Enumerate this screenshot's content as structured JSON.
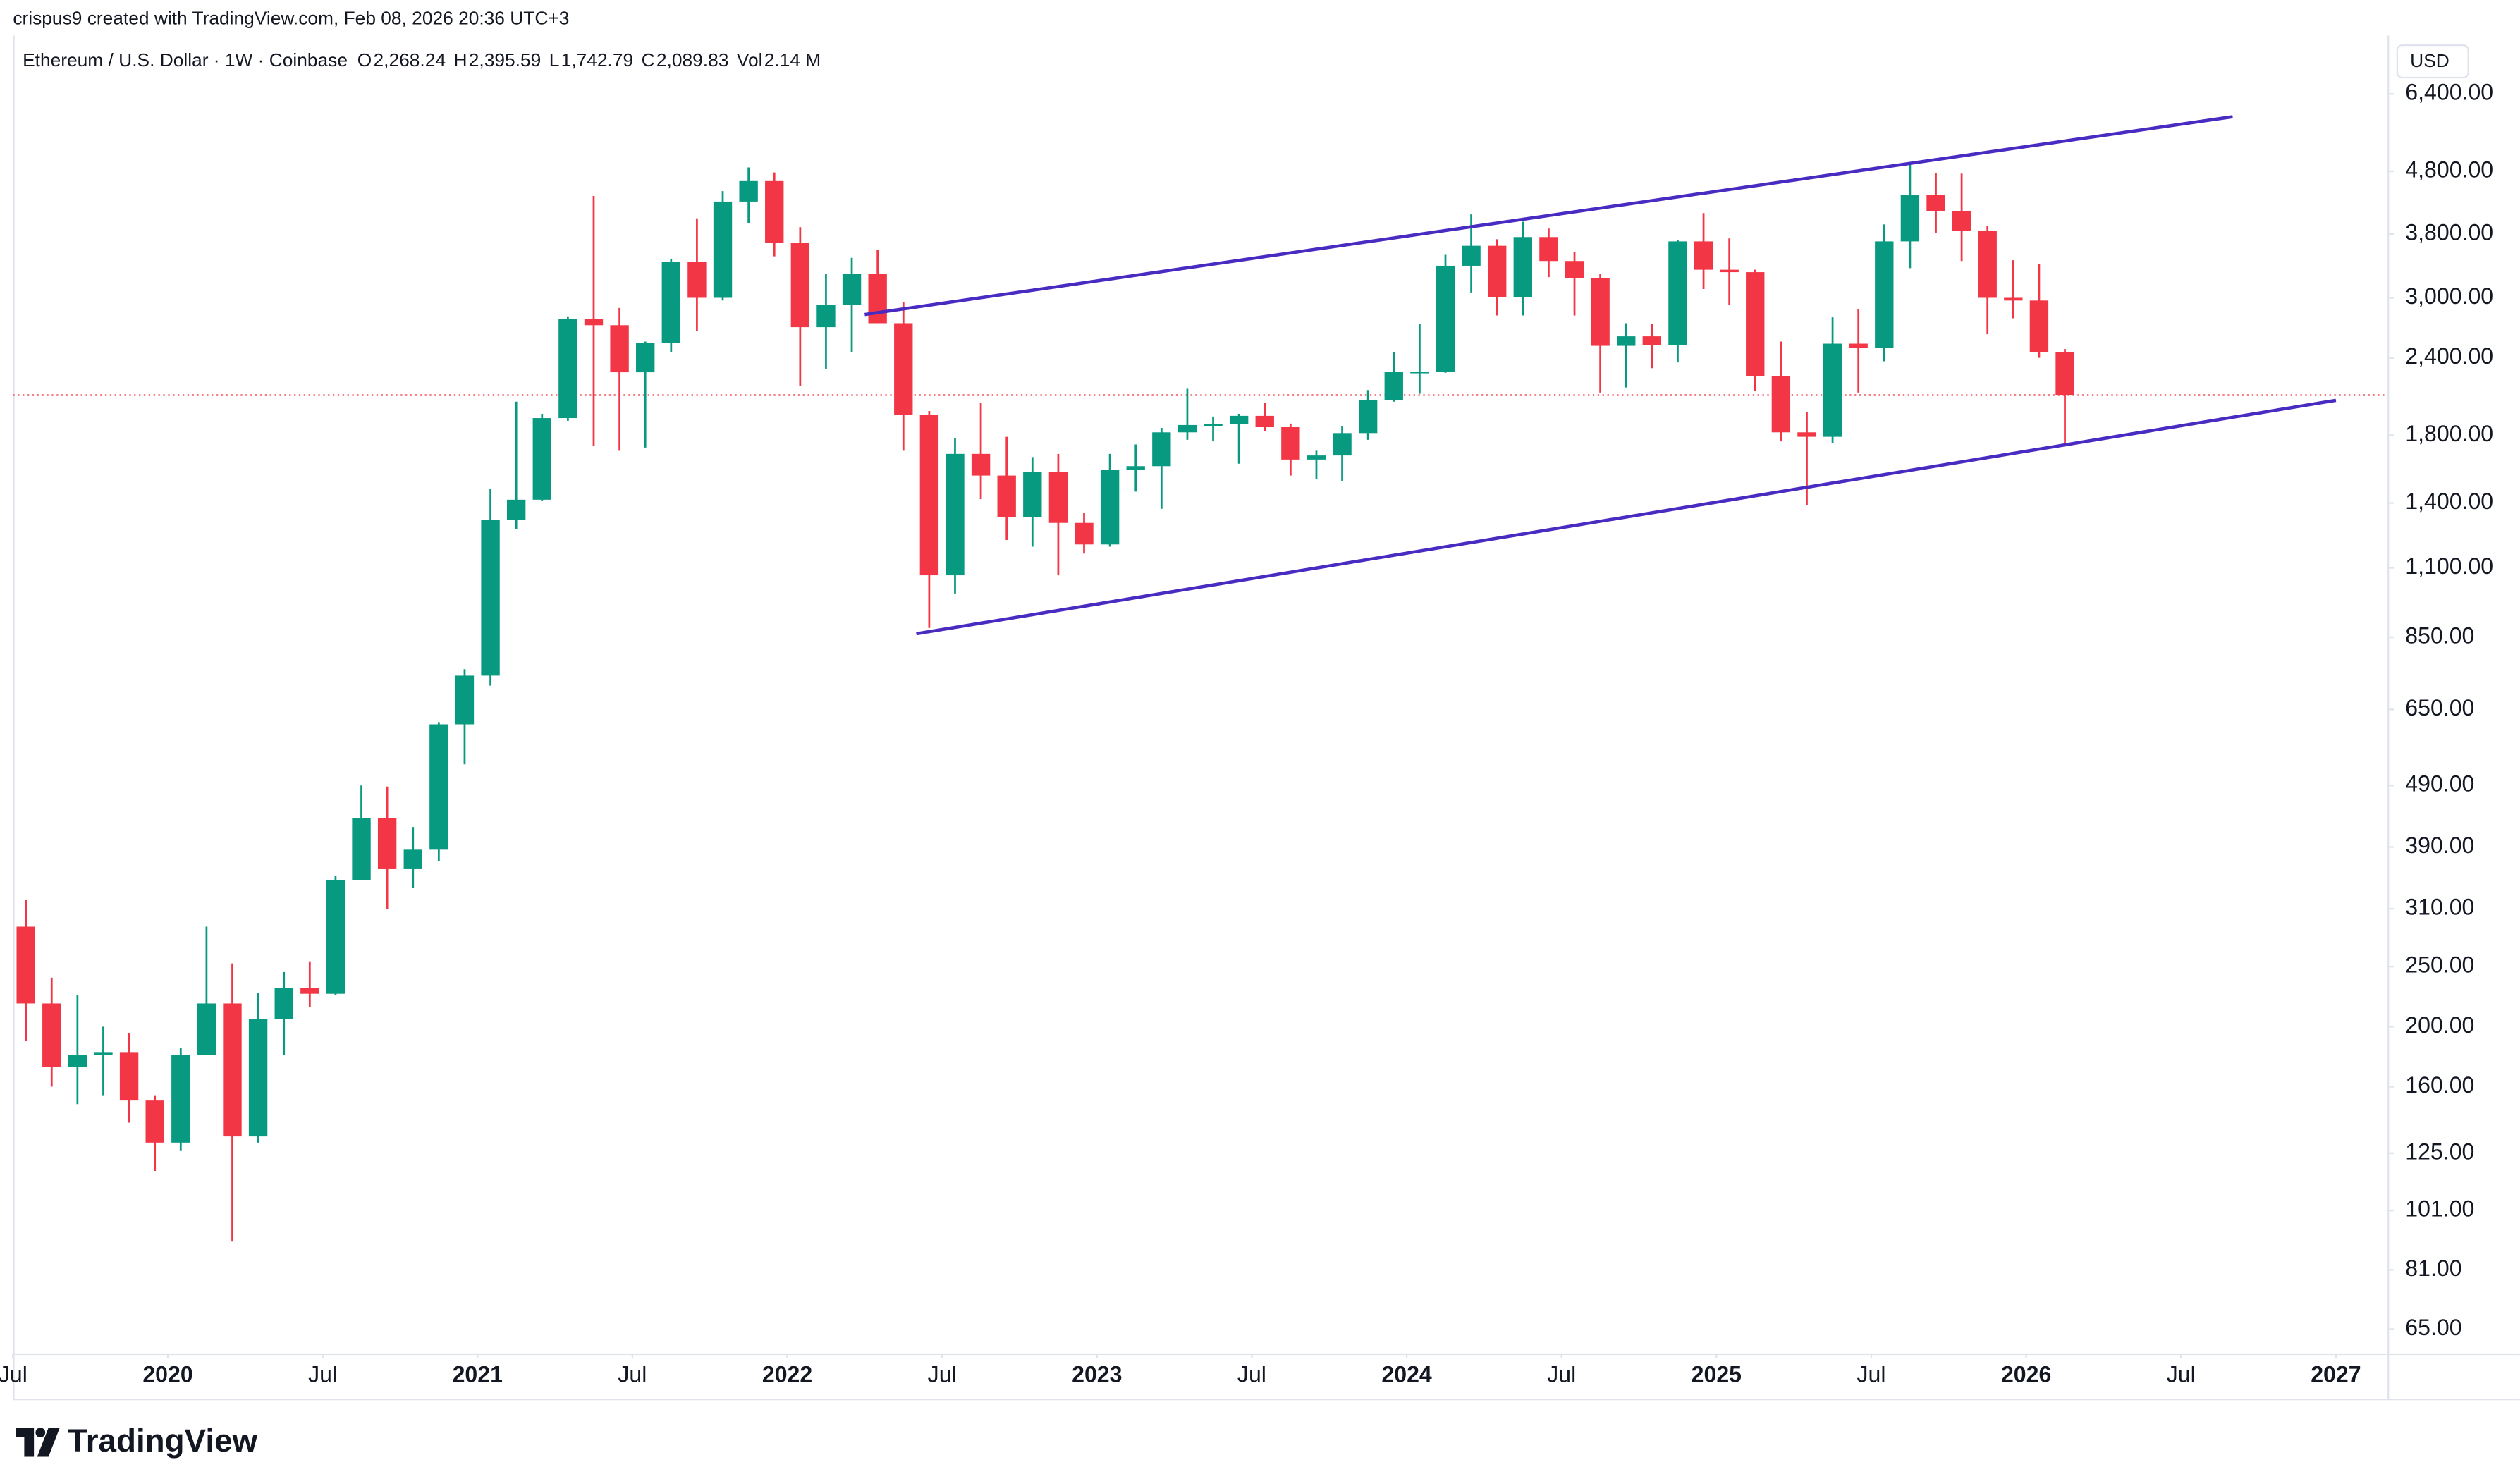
{
  "header": {
    "credit": "crispus9 created with TradingView.com, Feb 08, 2026 20:36 UTC+3",
    "symbol": "Ethereum / U.S. Dollar · 1W · Coinbase",
    "fields": [
      {
        "key": "O",
        "value": "2,268.24"
      },
      {
        "key": "H",
        "value": "2,395.59"
      },
      {
        "key": "L",
        "value": "1,742.79"
      },
      {
        "key": "C",
        "value": "2,089.83"
      },
      {
        "key": "Vol",
        "value": "2.14 M"
      }
    ],
    "currency": "USD"
  },
  "footer": {
    "brand": "TradingView"
  },
  "chart_data": {
    "type": "candlestick",
    "log_scale": true,
    "grid": false,
    "up_color": "#089981",
    "down_color": "#f23645",
    "x": [
      "2019-07",
      "2019-08",
      "2019-09",
      "2019-10",
      "2019-11",
      "2019-12",
      "2020-01",
      "2020-02",
      "2020-03",
      "2020-04",
      "2020-05",
      "2020-06",
      "2020-07",
      "2020-08",
      "2020-09",
      "2020-10",
      "2020-11",
      "2020-12",
      "2021-01",
      "2021-02",
      "2021-03",
      "2021-04",
      "2021-05",
      "2021-06",
      "2021-07",
      "2021-08",
      "2021-09",
      "2021-10",
      "2021-11",
      "2021-12",
      "2022-01",
      "2022-02",
      "2022-03",
      "2022-04",
      "2022-05",
      "2022-06",
      "2022-07",
      "2022-08",
      "2022-09",
      "2022-10",
      "2022-11",
      "2022-12",
      "2023-01",
      "2023-02",
      "2023-03",
      "2023-04",
      "2023-05",
      "2023-06",
      "2023-07",
      "2023-08",
      "2023-09",
      "2023-10",
      "2023-11",
      "2023-12",
      "2024-01",
      "2024-02",
      "2024-03",
      "2024-04",
      "2024-05",
      "2024-06",
      "2024-07",
      "2024-08",
      "2024-09",
      "2024-10",
      "2024-11",
      "2024-12",
      "2025-01",
      "2025-02",
      "2025-03",
      "2025-04",
      "2025-05",
      "2025-06",
      "2025-07",
      "2025-08",
      "2025-09",
      "2025-10",
      "2025-11",
      "2025-12",
      "2026-01",
      "2026-02"
    ],
    "open": [
      290,
      218,
      172,
      180,
      182,
      152,
      130,
      180,
      218,
      133,
      206,
      231,
      226,
      345,
      434,
      360,
      386,
      615,
      737,
      1314,
      1417,
      1919,
      2773,
      2710,
      2275,
      2536,
      3430,
      3000,
      4290,
      4630,
      3680,
      2690,
      2920,
      3280,
      2730,
      1940,
      1070,
      1680,
      1550,
      1330,
      1570,
      1300,
      1200,
      1585,
      1605,
      1820,
      1870,
      1875,
      1935,
      1855,
      1645,
      1670,
      1815,
      2050,
      2280,
      2280,
      3380,
      3640,
      3010,
      3760,
      3440,
      3230,
      2510,
      2600,
      2520,
      3700,
      3330,
      3300,
      2240,
      1820,
      1790,
      2530,
      2490,
      3700,
      4400,
      4140,
      3850,
      3000,
      2970,
      2450
    ],
    "high": [
      320,
      240,
      225,
      200,
      195,
      155,
      185,
      290,
      253,
      227,
      245,
      255,
      350,
      490,
      488,
      420,
      620,
      755,
      1475,
      2040,
      1950,
      2800,
      4380,
      2890,
      2550,
      3470,
      4030,
      4460,
      4870,
      4780,
      3900,
      3280,
      3480,
      3580,
      2950,
      1970,
      1780,
      2030,
      1790,
      1660,
      1680,
      1350,
      1680,
      1740,
      1850,
      2140,
      1930,
      1950,
      2030,
      1880,
      1700,
      1865,
      2130,
      2450,
      2720,
      3520,
      4090,
      3730,
      3980,
      3880,
      3560,
      3280,
      2730,
      2720,
      3720,
      4110,
      3740,
      3330,
      2550,
      1960,
      2790,
      2880,
      3940,
      4950,
      4770,
      4760,
      3920,
      3450,
      3400,
      2480
    ],
    "low": [
      190,
      160,
      150,
      155,
      140,
      117,
      126,
      180,
      90,
      130,
      180,
      215,
      225,
      345,
      310,
      335,
      370,
      530,
      710,
      1270,
      1410,
      1900,
      1730,
      1700,
      1720,
      2450,
      2650,
      2970,
      3960,
      3500,
      2160,
      2300,
      2450,
      2790,
      1700,
      880,
      1000,
      1420,
      1220,
      1190,
      1070,
      1160,
      1190,
      1460,
      1370,
      1770,
      1760,
      1620,
      1830,
      1550,
      1530,
      1520,
      1770,
      2040,
      2100,
      2270,
      3060,
      2810,
      2810,
      3240,
      2810,
      2110,
      2150,
      2310,
      2360,
      3100,
      2920,
      2120,
      1760,
      1390,
      1750,
      2110,
      2370,
      3350,
      3820,
      3440,
      2620,
      2780,
      2400,
      1742.79
    ],
    "close": [
      218,
      172,
      180,
      182,
      152,
      130,
      180,
      218,
      133,
      206,
      231,
      226,
      345,
      434,
      360,
      386,
      615,
      737,
      1314,
      1417,
      1919,
      2773,
      2710,
      2275,
      2536,
      3430,
      3000,
      4290,
      4630,
      3680,
      2690,
      2920,
      3280,
      2730,
      1940,
      1070,
      1680,
      1550,
      1330,
      1570,
      1300,
      1200,
      1585,
      1605,
      1820,
      1870,
      1875,
      1935,
      1855,
      1645,
      1670,
      1815,
      2050,
      2280,
      2280,
      3380,
      3640,
      3010,
      3760,
      3440,
      3230,
      2510,
      2600,
      2520,
      3700,
      3330,
      3300,
      2240,
      1820,
      1790,
      2530,
      2490,
      3700,
      4400,
      4140,
      3850,
      3000,
      2970,
      2450,
      2089.83
    ],
    "price_line_color": "#f23645",
    "trendline_color": "#4a2bc2",
    "trendlines": [
      {
        "x": [
          "2022-04",
          "2026-09"
        ],
        "y": [
          2820,
          5880
        ]
      },
      {
        "x": [
          "2022-06",
          "2027-01"
        ],
        "y": [
          861,
          2050
        ]
      }
    ],
    "xlim": [
      "2019-07",
      "2027-03"
    ],
    "xticks": [
      {
        "value": "2019-07",
        "label": "Jul"
      },
      {
        "value": "2020-01",
        "label": "2020"
      },
      {
        "value": "2020-07",
        "label": "Jul"
      },
      {
        "value": "2021-01",
        "label": "2021"
      },
      {
        "value": "2021-07",
        "label": "Jul"
      },
      {
        "value": "2022-01",
        "label": "2022"
      },
      {
        "value": "2022-07",
        "label": "Jul"
      },
      {
        "value": "2023-01",
        "label": "2023"
      },
      {
        "value": "2023-07",
        "label": "Jul"
      },
      {
        "value": "2024-01",
        "label": "2024"
      },
      {
        "value": "2024-07",
        "label": "Jul"
      },
      {
        "value": "2025-01",
        "label": "2025"
      },
      {
        "value": "2025-07",
        "label": "Jul"
      },
      {
        "value": "2026-01",
        "label": "2026"
      },
      {
        "value": "2026-07",
        "label": "Jul"
      },
      {
        "value": "2027-01",
        "label": "2027"
      }
    ],
    "ylim": [
      59.4,
      7950
    ],
    "yticks": [
      {
        "value": 6400,
        "label": "6,400.00"
      },
      {
        "value": 4800,
        "label": "4,800.00"
      },
      {
        "value": 3800,
        "label": "3,800.00"
      },
      {
        "value": 3000,
        "label": "3,000.00"
      },
      {
        "value": 2400,
        "label": "2,400.00"
      },
      {
        "value": 1800,
        "label": "1,800.00"
      },
      {
        "value": 1400,
        "label": "1,400.00"
      },
      {
        "value": 1100,
        "label": "1,100.00"
      },
      {
        "value": 850,
        "label": "850.00"
      },
      {
        "value": 650,
        "label": "650.00"
      },
      {
        "value": 490,
        "label": "490.00"
      },
      {
        "value": 390,
        "label": "390.00"
      },
      {
        "value": 310,
        "label": "310.00"
      },
      {
        "value": 250,
        "label": "250.00"
      },
      {
        "value": 200,
        "label": "200.00"
      },
      {
        "value": 160,
        "label": "160.00"
      },
      {
        "value": 125,
        "label": "125.00"
      },
      {
        "value": 101,
        "label": "101.00"
      },
      {
        "value": 81,
        "label": "81.00"
      },
      {
        "value": 65,
        "label": "65.00"
      }
    ]
  }
}
